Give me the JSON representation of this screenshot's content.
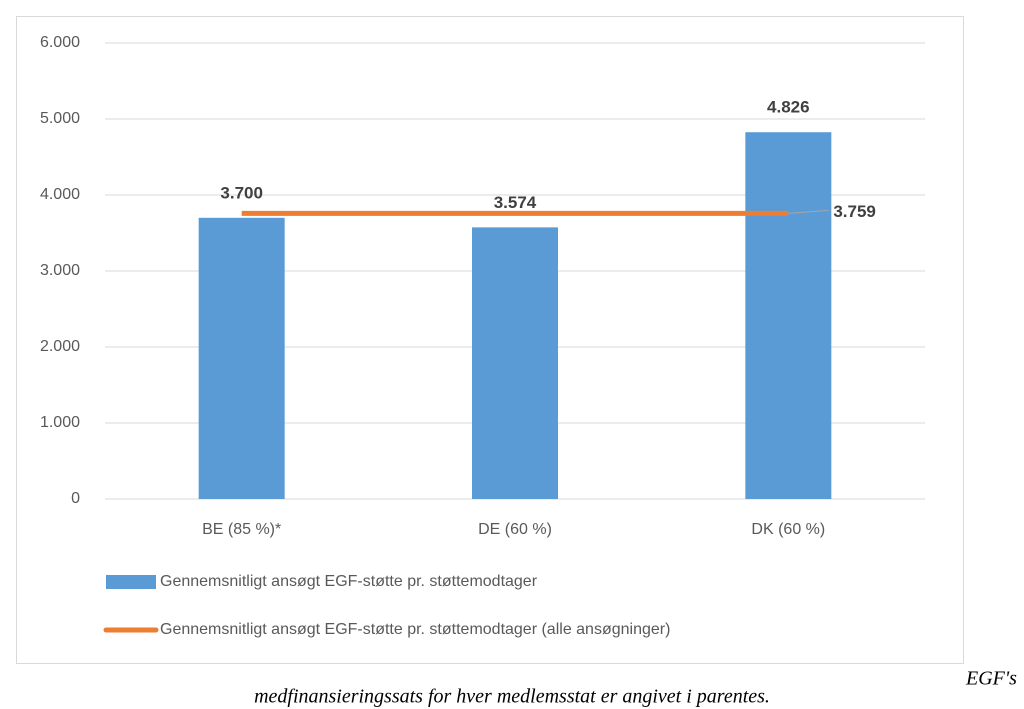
{
  "chart_data": {
    "type": "bar",
    "categories": [
      "BE (85 %)*",
      "DE (60 %)",
      "DK (60 %)"
    ],
    "series": [
      {
        "name": "Gennemsnitligt ansøgt EGF-støtte pr. støttemodtager",
        "type": "bar",
        "color": "#5b9bd5",
        "values": [
          3700,
          3574,
          4826
        ],
        "value_labels": [
          "3.700",
          "3.574",
          "4.826"
        ]
      },
      {
        "name": "Gennemsnitligt ansøgt EGF-støtte pr. støttemodtager (alle ansøgninger)",
        "type": "line",
        "color": "#ed7d31",
        "values": [
          3759,
          3759,
          3759
        ],
        "value_labels": [
          null,
          null,
          "3.759"
        ]
      }
    ],
    "ylim": [
      0,
      6000
    ],
    "yticks": [
      0,
      {
        "value": 1000,
        "label": "1.000"
      },
      {
        "value": 2000,
        "label": "2.000"
      },
      {
        "value": 3000,
        "label": "3.000"
      },
      {
        "value": 4000,
        "label": "4.000"
      },
      {
        "value": 5000,
        "label": "5.000"
      },
      {
        "value": 6000,
        "label": "6.000"
      }
    ],
    "grid": true,
    "legend": "bottom",
    "caption": [
      "EGF's",
      "medfinansieringssats for hver medlemsstat er angivet i parentes."
    ]
  }
}
